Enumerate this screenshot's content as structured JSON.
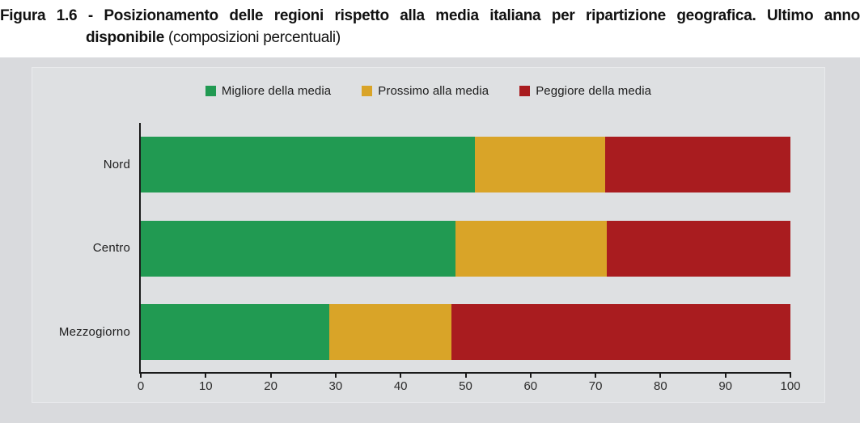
{
  "title": {
    "line1": "Figura 1.6 - Posizionamento delle regioni rispetto alla media italiana per ripartizione geografica. Ultimo anno",
    "line2_bold": "disponibile",
    "line2_regular": " (composizioni percentuali)"
  },
  "legend": {
    "items": [
      {
        "label": "Migliore della media",
        "color": "#219a52"
      },
      {
        "label": "Prossimo alla media",
        "color": "#d9a428"
      },
      {
        "label": "Peggiore della media",
        "color": "#a91c1f"
      }
    ]
  },
  "chart_data": {
    "type": "bar",
    "orientation": "horizontal",
    "stacked": true,
    "title": "Posizionamento delle regioni rispetto alla media italiana per ripartizione geografica. Ultimo anno disponibile (composizioni percentuali)",
    "categories": [
      "Nord",
      "Centro",
      "Mezzogiorno"
    ],
    "series": [
      {
        "name": "Migliore della media",
        "color": "#219a52",
        "values": [
          51.4,
          48.4,
          29.0
        ]
      },
      {
        "name": "Prossimo alla media",
        "color": "#d9a428",
        "values": [
          20.1,
          23.3,
          18.8
        ]
      },
      {
        "name": "Peggiore della media",
        "color": "#a91c1f",
        "values": [
          28.5,
          28.3,
          52.2
        ]
      }
    ],
    "xlabel": "",
    "ylabel": "",
    "xlim": [
      0,
      100
    ],
    "xticks": [
      0,
      10,
      20,
      30,
      40,
      50,
      60,
      70,
      80,
      90,
      100
    ],
    "unit": "percent",
    "legend_position": "top",
    "grid": false
  },
  "colors": {
    "panel_outer": "#d9dadd",
    "panel_inner": "#dee0e2",
    "axis": "#1a1a1a",
    "page_background": "#ffffff"
  }
}
